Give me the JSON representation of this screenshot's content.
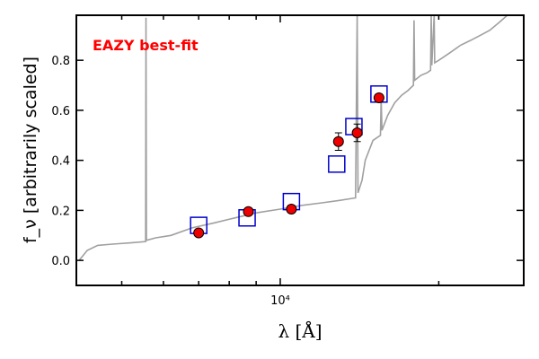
{
  "chart_data": {
    "type": "scatter",
    "title": "",
    "annotation": {
      "text": "EAZY best-fit",
      "color": "#ff0000"
    },
    "xlabel": "λ [Å]",
    "ylabel": "f_ν [arbitrarily scaled]",
    "xscale": "log",
    "xlim": [
      4100,
      29000
    ],
    "ylim": [
      -0.1,
      0.98
    ],
    "x_tick_labels": [
      {
        "value": 10000,
        "label": "10⁴"
      }
    ],
    "y_ticks": [
      0.0,
      0.2,
      0.4,
      0.6,
      0.8
    ],
    "y_tick_labels": [
      "0.0",
      "0.2",
      "0.4",
      "0.6",
      "0.8"
    ],
    "grid": false,
    "series": [
      {
        "kind": "line",
        "color": "#a0a0a0",
        "points": [
          [
            4150,
            0.0
          ],
          [
            4300,
            0.04
          ],
          [
            4500,
            0.06
          ],
          [
            4800,
            0.065
          ],
          [
            5200,
            0.07
          ],
          [
            5550,
            0.075
          ],
          [
            5560,
            0.97
          ],
          [
            5570,
            0.08
          ],
          [
            5800,
            0.09
          ],
          [
            6200,
            0.1
          ],
          [
            6800,
            0.13
          ],
          [
            7500,
            0.15
          ],
          [
            8200,
            0.17
          ],
          [
            9000,
            0.19
          ],
          [
            10000,
            0.205
          ],
          [
            11000,
            0.22
          ],
          [
            12000,
            0.23
          ],
          [
            13000,
            0.24
          ],
          [
            13900,
            0.25
          ],
          [
            14000,
            0.98
          ],
          [
            14050,
            0.27
          ],
          [
            14300,
            0.32
          ],
          [
            14500,
            0.4
          ],
          [
            15000,
            0.48
          ],
          [
            15500,
            0.5
          ],
          [
            15550,
            0.65
          ],
          [
            15600,
            0.52
          ],
          [
            16000,
            0.58
          ],
          [
            16500,
            0.63
          ],
          [
            17000,
            0.66
          ],
          [
            17500,
            0.68
          ],
          [
            17900,
            0.7
          ],
          [
            17950,
            0.96
          ],
          [
            18000,
            0.72
          ],
          [
            18500,
            0.74
          ],
          [
            19000,
            0.75
          ],
          [
            19300,
            0.76
          ],
          [
            19350,
            0.98
          ],
          [
            19400,
            0.78
          ],
          [
            19600,
            0.98
          ],
          [
            19650,
            0.79
          ],
          [
            20000,
            0.8
          ],
          [
            21000,
            0.83
          ],
          [
            22000,
            0.86
          ],
          [
            23000,
            0.88
          ],
          [
            24000,
            0.9
          ],
          [
            25000,
            0.92
          ],
          [
            26000,
            0.95
          ],
          [
            27000,
            0.98
          ]
        ]
      },
      {
        "kind": "open-squares",
        "color": "#0000cc",
        "points": [
          [
            7000,
            0.14
          ],
          [
            8650,
            0.17
          ],
          [
            10500,
            0.235
          ],
          [
            12800,
            0.385
          ],
          [
            13800,
            0.535
          ],
          [
            15400,
            0.665
          ]
        ]
      },
      {
        "kind": "points-with-errorbars",
        "color": "#ee0000",
        "points": [
          {
            "x": 7000,
            "y": 0.11,
            "err": 0.01
          },
          {
            "x": 8700,
            "y": 0.195,
            "err": 0.01
          },
          {
            "x": 10500,
            "y": 0.205,
            "err": 0.015
          },
          {
            "x": 12900,
            "y": 0.475,
            "err": 0.035
          },
          {
            "x": 14000,
            "y": 0.51,
            "err": 0.035
          },
          {
            "x": 15400,
            "y": 0.65,
            "err": 0.015
          }
        ]
      }
    ]
  }
}
